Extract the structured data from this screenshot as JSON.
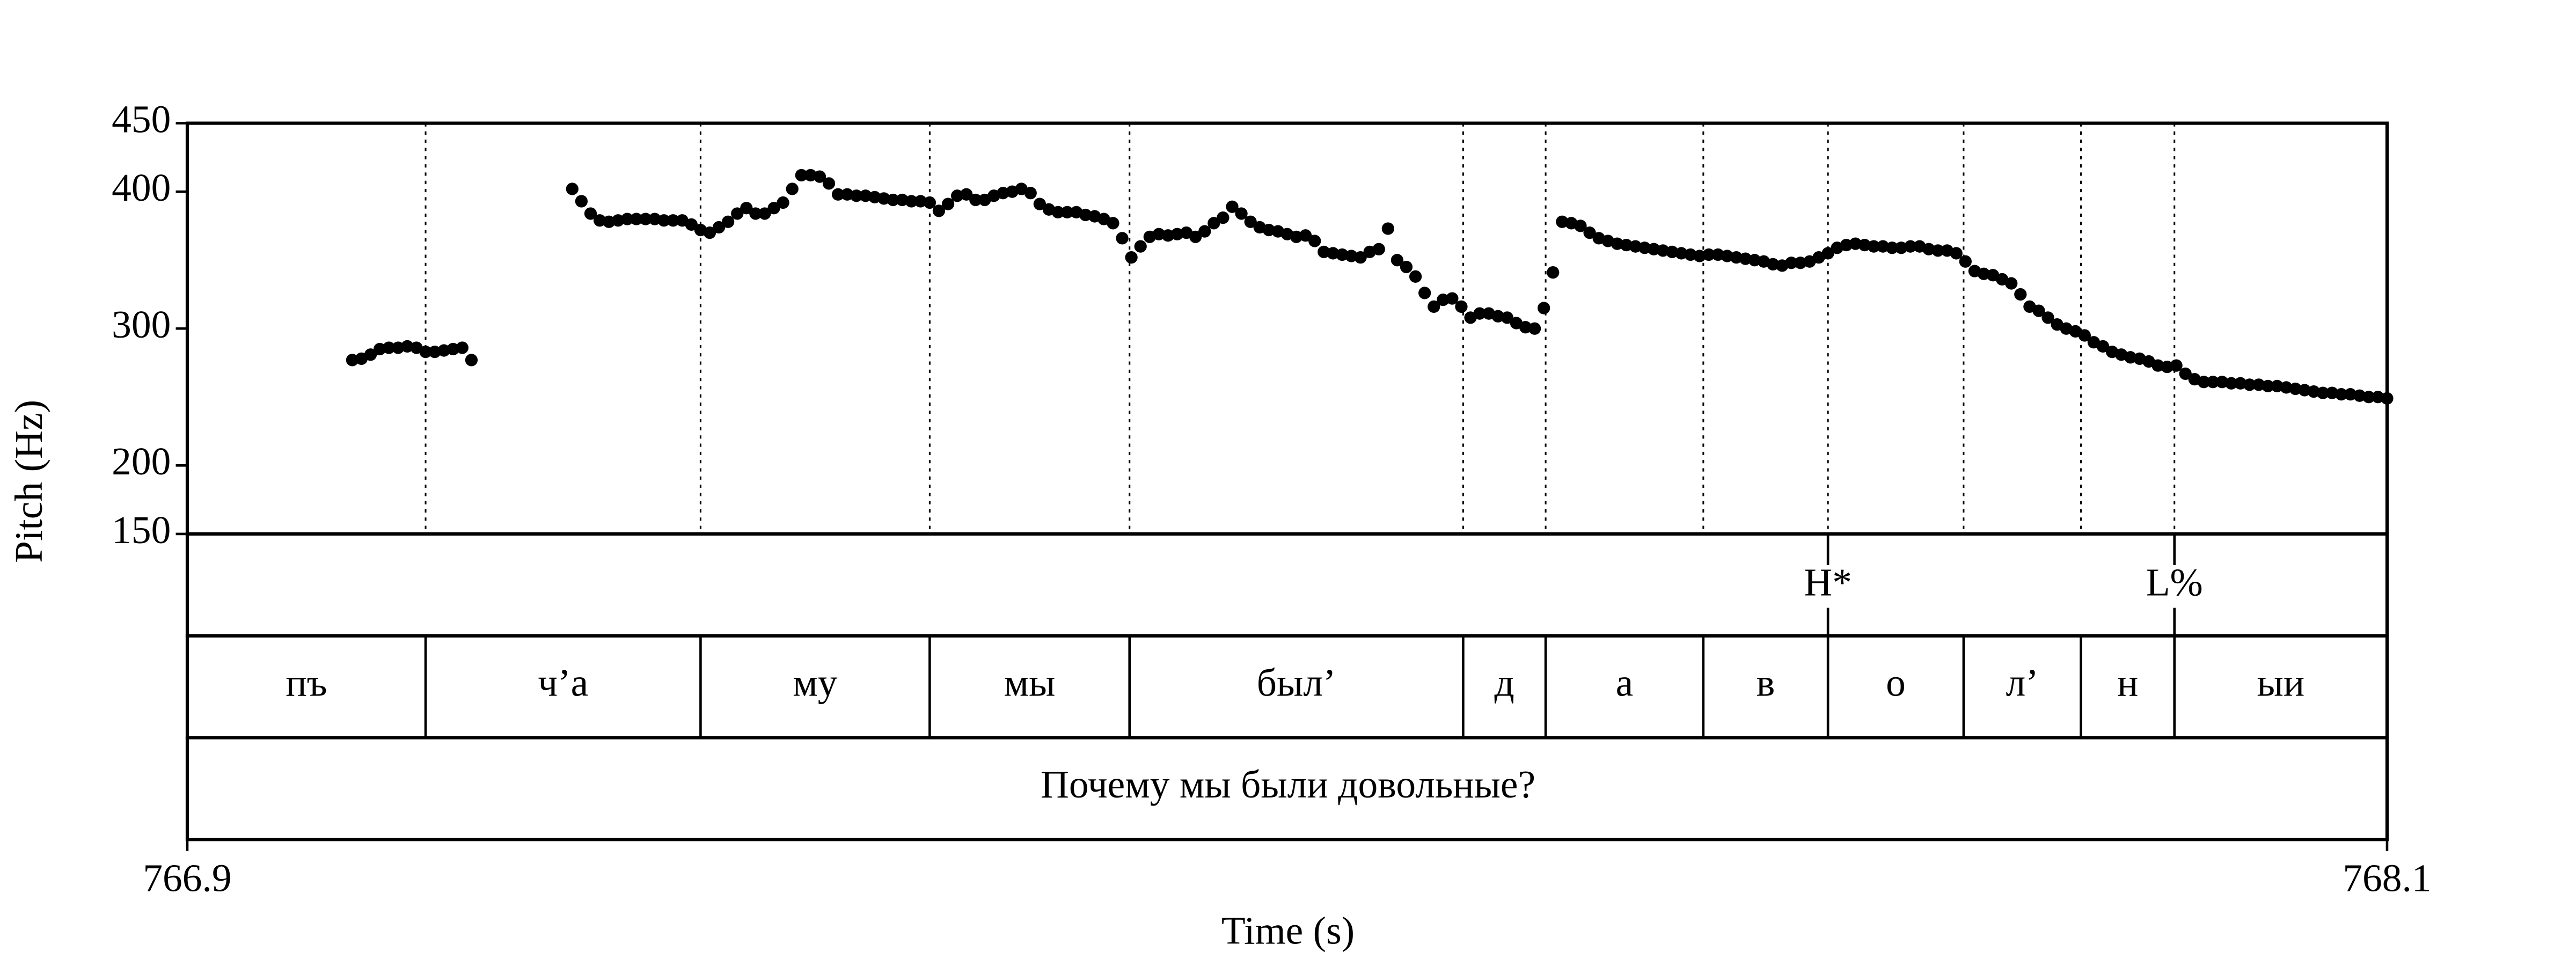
{
  "chart_data": {
    "type": "scatter",
    "xlabel": "Time (s)",
    "ylabel": "Pitch (Hz)",
    "color": "#000000",
    "xlim": [
      766.9,
      768.1
    ],
    "xticks": [
      766.9,
      768.1
    ],
    "ylim": [
      150,
      450
    ],
    "yticks": [
      150,
      200,
      300,
      400,
      450
    ],
    "x": [
      766.99,
      766.995,
      767,
      767.005,
      767.01,
      767.015,
      767.02,
      767.025,
      767.03,
      767.035,
      767.04,
      767.045,
      767.05,
      767.055,
      767.11,
      767.115,
      767.12,
      767.125,
      767.13,
      767.135,
      767.14,
      767.145,
      767.15,
      767.155,
      767.16,
      767.165,
      767.17,
      767.175,
      767.18,
      767.185,
      767.19,
      767.195,
      767.2,
      767.205,
      767.21,
      767.215,
      767.22,
      767.225,
      767.23,
      767.235,
      767.24,
      767.245,
      767.25,
      767.255,
      767.26,
      767.265,
      767.27,
      767.275,
      767.28,
      767.285,
      767.29,
      767.295,
      767.3,
      767.305,
      767.31,
      767.315,
      767.32,
      767.325,
      767.33,
      767.335,
      767.34,
      767.345,
      767.35,
      767.355,
      767.36,
      767.365,
      767.37,
      767.375,
      767.38,
      767.385,
      767.39,
      767.395,
      767.4,
      767.405,
      767.41,
      767.415,
      767.42,
      767.425,
      767.43,
      767.435,
      767.44,
      767.445,
      767.45,
      767.455,
      767.46,
      767.465,
      767.47,
      767.475,
      767.48,
      767.485,
      767.49,
      767.495,
      767.5,
      767.505,
      767.51,
      767.515,
      767.52,
      767.525,
      767.53,
      767.535,
      767.54,
      767.545,
      767.55,
      767.555,
      767.56,
      767.565,
      767.57,
      767.575,
      767.58,
      767.585,
      767.59,
      767.595,
      767.6,
      767.605,
      767.61,
      767.615,
      767.62,
      767.625,
      767.63,
      767.635,
      767.64,
      767.645,
      767.65,
      767.655,
      767.66,
      767.665,
      767.67,
      767.675,
      767.68,
      767.685,
      767.69,
      767.695,
      767.7,
      767.705,
      767.71,
      767.715,
      767.72,
      767.725,
      767.73,
      767.735,
      767.74,
      767.745,
      767.75,
      767.755,
      767.76,
      767.765,
      767.77,
      767.775,
      767.78,
      767.785,
      767.79,
      767.795,
      767.8,
      767.805,
      767.81,
      767.815,
      767.82,
      767.825,
      767.83,
      767.835,
      767.84,
      767.845,
      767.85,
      767.855,
      767.86,
      767.865,
      767.87,
      767.875,
      767.88,
      767.885,
      767.89,
      767.895,
      767.9,
      767.905,
      767.91,
      767.915,
      767.92,
      767.925,
      767.93,
      767.935,
      767.94,
      767.945,
      767.95,
      767.955,
      767.96,
      767.965,
      767.97,
      767.975,
      767.98,
      767.985,
      767.99,
      767.995,
      768,
      768.005,
      768.01,
      768.015,
      768.02,
      768.025,
      768.03,
      768.035,
      768.04,
      768.045,
      768.05,
      768.055,
      768.06,
      768.065,
      768.07,
      768.075,
      768.08,
      768.085,
      768.09,
      768.095,
      768.1
    ],
    "values": [
      277,
      278,
      281,
      285,
      286,
      286,
      287,
      286,
      283,
      283,
      284,
      285,
      286,
      277,
      402,
      393,
      384,
      379,
      378,
      379,
      380,
      380,
      380,
      380,
      379,
      379,
      379,
      376,
      372,
      370,
      374,
      378,
      384,
      388,
      384,
      384,
      388,
      392,
      402,
      412,
      412,
      411,
      406,
      398,
      398,
      397,
      397,
      396,
      395,
      394,
      394,
      393,
      393,
      392,
      386,
      391,
      397,
      398,
      394,
      394,
      397,
      399,
      400,
      402,
      399,
      391,
      387,
      385,
      385,
      385,
      383,
      382,
      380,
      377,
      366,
      352,
      360,
      367,
      369,
      368,
      369,
      370,
      367,
      371,
      377,
      381,
      389,
      384,
      378,
      374,
      372,
      371,
      369,
      367,
      368,
      364,
      356,
      355,
      354,
      353,
      352,
      356,
      358,
      373,
      350,
      345,
      338,
      326,
      316,
      321,
      322,
      316,
      308,
      311,
      311,
      309,
      308,
      304,
      301,
      300,
      315,
      341,
      378,
      377,
      375,
      370,
      366,
      364,
      362,
      361,
      360,
      359,
      358,
      357,
      356,
      355,
      354,
      353,
      354,
      354,
      353,
      352,
      351,
      350,
      349,
      347,
      346,
      348,
      348,
      349,
      352,
      355,
      359,
      361,
      362,
      361,
      360,
      360,
      359,
      359,
      360,
      360,
      358,
      357,
      357,
      355,
      349,
      342,
      340,
      339,
      336,
      333,
      325,
      316,
      313,
      308,
      303,
      300,
      298,
      295,
      290,
      287,
      283,
      281,
      279,
      278,
      276,
      273,
      272,
      273,
      267,
      263,
      261,
      261,
      261,
      260,
      260,
      259,
      259,
      258,
      258,
      257,
      256,
      255,
      254,
      253,
      253,
      252,
      252,
      251,
      250,
      250,
      249
    ],
    "tones": [
      {
        "label": "H*",
        "time": 767.795
      },
      {
        "label": "L%",
        "time": 767.984
      }
    ],
    "segments": {
      "labels": [
        "пъ",
        "ч’а",
        "му",
        "мы",
        "был’",
        "д",
        "а",
        "в",
        "о",
        "л’",
        "н",
        "ыи"
      ],
      "boundaries": [
        767.03,
        767.18,
        767.305,
        767.414,
        767.596,
        767.641,
        767.727,
        767.795,
        767.869,
        767.933,
        767.984
      ]
    },
    "sentence": "Почему мы были довольные?"
  }
}
